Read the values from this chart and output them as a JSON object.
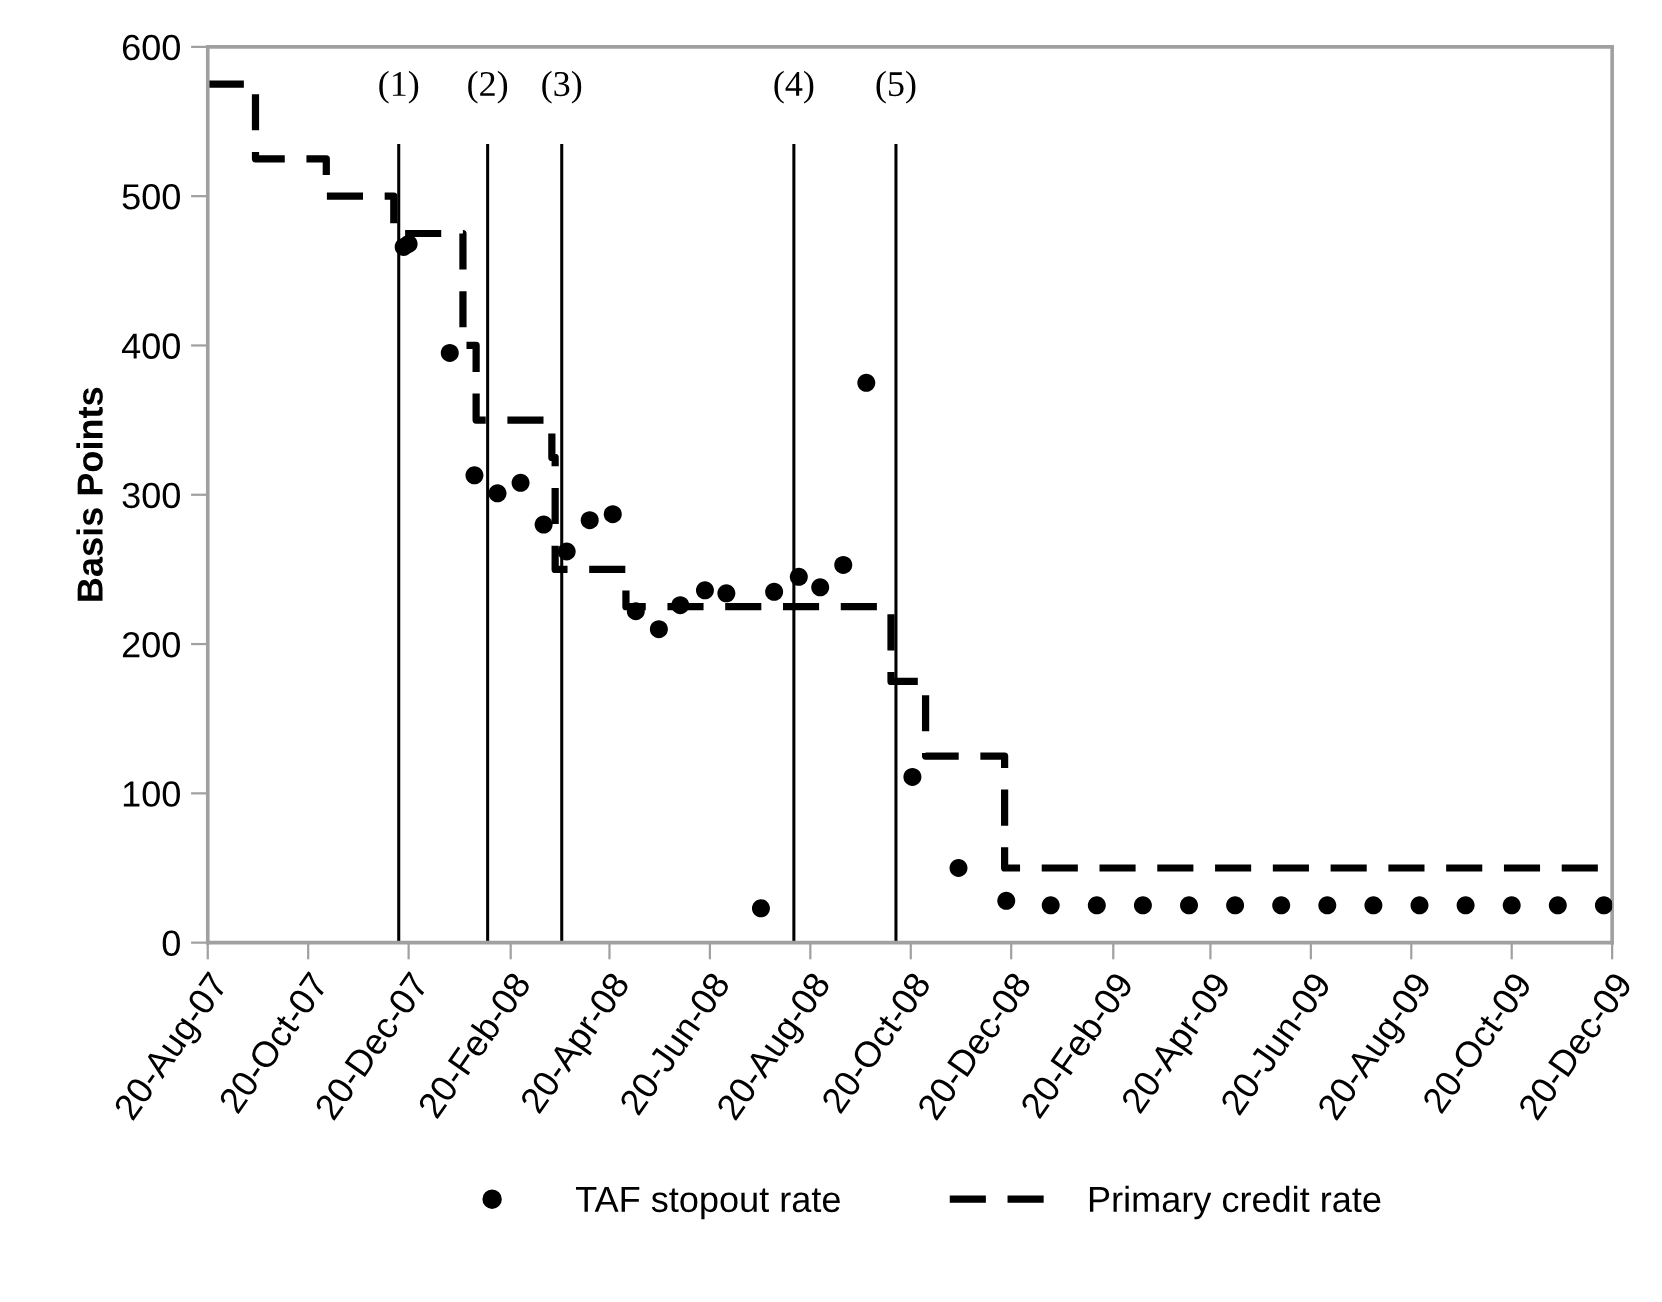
{
  "chart_data": {
    "type": "scatter",
    "ylabel": "Basis Points",
    "xlim": [
      "2007-08-20",
      "2009-12-20"
    ],
    "xticks": [
      {
        "value": "2007-08-20",
        "label": "20-Aug-07"
      },
      {
        "value": "2007-10-20",
        "label": "20-Oct-07"
      },
      {
        "value": "2007-12-20",
        "label": "20-Dec-07"
      },
      {
        "value": "2008-02-20",
        "label": "20-Feb-08"
      },
      {
        "value": "2008-04-20",
        "label": "20-Apr-08"
      },
      {
        "value": "2008-06-20",
        "label": "20-Jun-08"
      },
      {
        "value": "2008-08-20",
        "label": "20-Aug-08"
      },
      {
        "value": "2008-10-20",
        "label": "20-Oct-08"
      },
      {
        "value": "2008-12-20",
        "label": "20-Dec-08"
      },
      {
        "value": "2009-02-20",
        "label": "20-Feb-09"
      },
      {
        "value": "2009-04-20",
        "label": "20-Apr-09"
      },
      {
        "value": "2009-06-20",
        "label": "20-Jun-09"
      },
      {
        "value": "2009-08-20",
        "label": "20-Aug-09"
      },
      {
        "value": "2009-10-20",
        "label": "20-Oct-09"
      },
      {
        "value": "2009-12-20",
        "label": "20-Dec-09"
      }
    ],
    "ylim": [
      0,
      600
    ],
    "yticks": [
      0,
      100,
      200,
      300,
      400,
      500,
      600
    ],
    "legend": "bottom",
    "series": [
      {
        "name": "TAF stopout rate",
        "marker": "circle",
        "color": "#000000",
        "x": [
          "2007-12-17",
          "2007-12-20",
          "2008-01-14",
          "2008-01-29",
          "2008-02-12",
          "2008-02-26",
          "2008-03-11",
          "2008-03-25",
          "2008-04-08",
          "2008-04-22",
          "2008-05-06",
          "2008-05-20",
          "2008-06-02",
          "2008-06-17",
          "2008-06-30",
          "2008-07-21",
          "2008-07-29",
          "2008-08-13",
          "2008-08-26",
          "2008-09-09",
          "2008-09-23",
          "2008-10-21",
          "2008-11-18",
          "2008-12-17",
          "2009-01-13",
          "2009-02-10",
          "2009-03-10",
          "2009-04-07",
          "2009-05-05",
          "2009-06-02",
          "2009-06-30",
          "2009-07-28",
          "2009-08-25",
          "2009-09-22",
          "2009-10-20",
          "2009-11-17",
          "2009-12-15"
        ],
        "values": [
          466,
          468,
          395,
          313,
          301,
          308,
          280,
          262,
          283,
          287,
          222,
          210,
          226,
          236,
          234,
          23,
          235,
          245,
          238,
          253,
          375,
          111,
          50,
          28,
          25,
          25,
          25,
          25,
          25,
          25,
          25,
          25,
          25,
          25,
          25,
          25,
          25
        ]
      },
      {
        "name": "Primary credit rate",
        "type": "step",
        "line_style": "dashed",
        "color": "#000000",
        "x": [
          "2007-08-20",
          "2007-09-18",
          "2007-10-31",
          "2007-12-11",
          "2008-01-22",
          "2008-01-30",
          "2008-03-16",
          "2008-03-18",
          "2008-04-30",
          "2008-10-08",
          "2008-10-29",
          "2008-12-16",
          "2009-12-20"
        ],
        "values": [
          575,
          525,
          500,
          475,
          400,
          350,
          325,
          250,
          225,
          175,
          125,
          50,
          50
        ]
      }
    ],
    "ref_lines": [
      {
        "axis": "x",
        "value": "2007-12-14",
        "label": "(1)",
        "color": "#000000"
      },
      {
        "axis": "x",
        "value": "2008-02-06",
        "label": "(2)",
        "color": "#000000"
      },
      {
        "axis": "x",
        "value": "2008-03-22",
        "label": "(3)",
        "color": "#000000"
      },
      {
        "axis": "x",
        "value": "2008-08-10",
        "label": "(4)",
        "color": "#000000"
      },
      {
        "axis": "x",
        "value": "2008-10-11",
        "label": "(5)",
        "color": "#000000"
      }
    ]
  }
}
